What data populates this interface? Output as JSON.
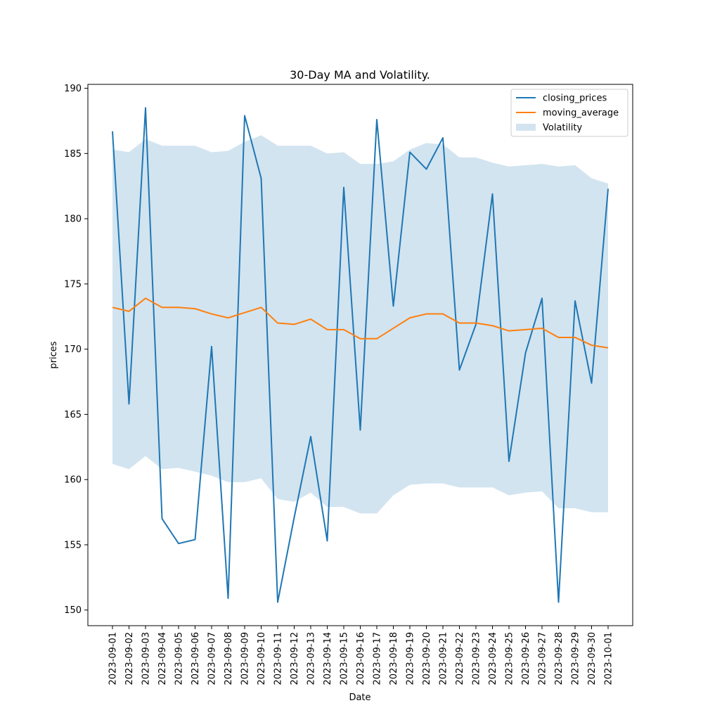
{
  "chart_data": {
    "type": "line",
    "title": "30-Day MA and Volatility.",
    "xlabel": "Date",
    "ylabel": "prices",
    "ylim": [
      148.8,
      190.3
    ],
    "yticks": [
      150,
      155,
      160,
      165,
      170,
      175,
      180,
      185,
      190
    ],
    "grid": false,
    "legend_position": "top-right",
    "x": [
      "2023-09-01",
      "2023-09-02",
      "2023-09-03",
      "2023-09-04",
      "2023-09-05",
      "2023-09-06",
      "2023-09-07",
      "2023-09-08",
      "2023-09-09",
      "2023-09-10",
      "2023-09-11",
      "2023-09-12",
      "2023-09-13",
      "2023-09-14",
      "2023-09-15",
      "2023-09-16",
      "2023-09-17",
      "2023-09-18",
      "2023-09-19",
      "2023-09-20",
      "2023-09-21",
      "2023-09-22",
      "2023-09-23",
      "2023-09-24",
      "2023-09-25",
      "2023-09-26",
      "2023-09-27",
      "2023-09-28",
      "2023-09-29",
      "2023-09-30",
      "2023-10-01"
    ],
    "series": [
      {
        "name": "closing_prices",
        "kind": "line",
        "color": "#1f77b4",
        "values": [
          186.7,
          165.8,
          188.5,
          157.0,
          155.1,
          155.4,
          170.2,
          150.9,
          187.9,
          183.1,
          150.6,
          157.1,
          163.3,
          155.3,
          182.4,
          163.8,
          187.6,
          173.3,
          185.1,
          183.8,
          186.2,
          168.4,
          171.9,
          181.9,
          161.4,
          169.7,
          173.9,
          150.6,
          173.7,
          167.4,
          182.3
        ]
      },
      {
        "name": "moving_average",
        "kind": "line",
        "color": "#ff7f0e",
        "values": [
          173.2,
          172.9,
          173.9,
          173.2,
          173.2,
          173.1,
          172.7,
          172.4,
          172.8,
          173.2,
          172.0,
          171.9,
          172.3,
          171.5,
          171.5,
          170.8,
          170.8,
          171.6,
          172.4,
          172.7,
          172.7,
          172.0,
          172.0,
          171.8,
          171.4,
          171.5,
          171.6,
          170.9,
          170.9,
          170.3,
          170.1
        ]
      },
      {
        "name": "Volatility",
        "kind": "band",
        "color": "#1f77b4",
        "opacity": 0.2,
        "upper": [
          185.3,
          185.1,
          186.1,
          185.6,
          185.6,
          185.6,
          185.1,
          185.2,
          185.9,
          186.4,
          185.6,
          185.6,
          185.6,
          185.0,
          185.1,
          184.2,
          184.2,
          184.4,
          185.3,
          185.8,
          185.7,
          184.7,
          184.7,
          184.3,
          184.0,
          184.1,
          184.2,
          184.0,
          184.1,
          183.1,
          182.7
        ],
        "lower": [
          161.2,
          160.8,
          161.8,
          160.8,
          160.9,
          160.6,
          160.3,
          159.8,
          159.8,
          160.1,
          158.5,
          158.3,
          159.0,
          157.9,
          157.9,
          157.4,
          157.4,
          158.8,
          159.6,
          159.7,
          159.7,
          159.4,
          159.4,
          159.4,
          158.8,
          159.0,
          159.1,
          157.8,
          157.8,
          157.5,
          157.5
        ]
      }
    ]
  }
}
